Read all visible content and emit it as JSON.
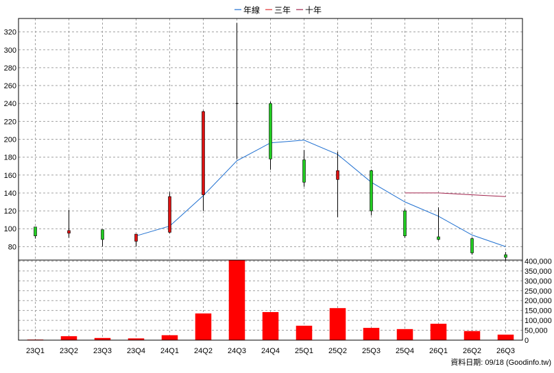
{
  "legend": {
    "items": [
      {
        "label": "年線",
        "color": "#1e6fd0"
      },
      {
        "label": "三年",
        "color": "#e03030"
      },
      {
        "label": "十年",
        "color": "#a0204a"
      }
    ]
  },
  "footer": {
    "source": "資料日期: 09/18  (Goodinfo.tw)"
  },
  "chart_data": [
    {
      "type": "candlestick",
      "categories": [
        "23Q1",
        "23Q2",
        "23Q3",
        "23Q4",
        "24Q1",
        "24Q2",
        "24Q3",
        "24Q4",
        "25Q1",
        "25Q2",
        "25Q3",
        "25Q4",
        "26Q1",
        "26Q2",
        "26Q3"
      ],
      "ohlc": [
        {
          "open": 92,
          "high": 102,
          "low": 89,
          "close": 102,
          "color": "green"
        },
        {
          "open": 95,
          "high": 121,
          "low": 90,
          "close": 98,
          "color": "red"
        },
        {
          "open": 88,
          "high": 99,
          "low": 80,
          "close": 99,
          "color": "green"
        },
        {
          "open": 86,
          "high": 94,
          "low": 80,
          "close": 94,
          "color": "red"
        },
        {
          "open": 96,
          "high": 141,
          "low": 95,
          "close": 136,
          "color": "red"
        },
        {
          "open": 138,
          "high": 232,
          "low": 120,
          "close": 231,
          "color": "red"
        },
        {
          "open": 240,
          "high": 330,
          "low": 178,
          "close": 240,
          "color": "flat"
        },
        {
          "open": 240,
          "high": 242,
          "low": 166,
          "close": 178,
          "color": "green"
        },
        {
          "open": 177,
          "high": 188,
          "low": 147,
          "close": 152,
          "color": "green"
        },
        {
          "open": 155,
          "high": 186,
          "low": 113,
          "close": 165,
          "color": "red"
        },
        {
          "open": 165,
          "high": 166,
          "low": 115,
          "close": 120,
          "color": "green"
        },
        {
          "open": 120,
          "high": 122,
          "low": 90,
          "close": 92,
          "color": "green"
        },
        {
          "open": 91,
          "high": 124,
          "low": 87,
          "close": 88,
          "color": "green"
        },
        {
          "open": 89,
          "high": 90,
          "low": 71,
          "close": 73,
          "color": "green"
        },
        {
          "open": 71,
          "high": 74,
          "low": 63,
          "close": 68,
          "color": "green"
        }
      ],
      "series": [
        {
          "name": "年線",
          "values": [
            null,
            null,
            null,
            92,
            103,
            137,
            176,
            196,
            199,
            183,
            152,
            130,
            114,
            93,
            80
          ]
        },
        {
          "name": "十年",
          "values": [
            null,
            null,
            null,
            null,
            null,
            null,
            null,
            null,
            null,
            null,
            null,
            140,
            140,
            138,
            136
          ]
        }
      ],
      "yticks": [
        80,
        100,
        120,
        140,
        160,
        180,
        200,
        220,
        240,
        260,
        280,
        300,
        320
      ],
      "ylim": [
        65,
        335
      ],
      "grid": true
    },
    {
      "type": "bar",
      "categories": [
        "23Q1",
        "23Q2",
        "23Q3",
        "23Q4",
        "24Q1",
        "24Q2",
        "24Q3",
        "24Q4",
        "25Q1",
        "25Q2",
        "25Q3",
        "25Q4",
        "26Q1",
        "26Q2",
        "26Q3"
      ],
      "values": [
        3000,
        20000,
        11000,
        9000,
        25000,
        135000,
        405000,
        142000,
        73000,
        162000,
        62000,
        56000,
        83000,
        46000,
        28000
      ],
      "yticks": [
        0,
        50000,
        100000,
        150000,
        200000,
        250000,
        300000,
        350000,
        400000
      ],
      "ytick_labels": [
        "0",
        "50,000",
        "100,000",
        "150,000",
        "200,000",
        "250,000",
        "300,000",
        "350,000",
        "400,000"
      ],
      "ylim": [
        0,
        405000
      ],
      "color": "#ff0000",
      "grid": true
    }
  ]
}
